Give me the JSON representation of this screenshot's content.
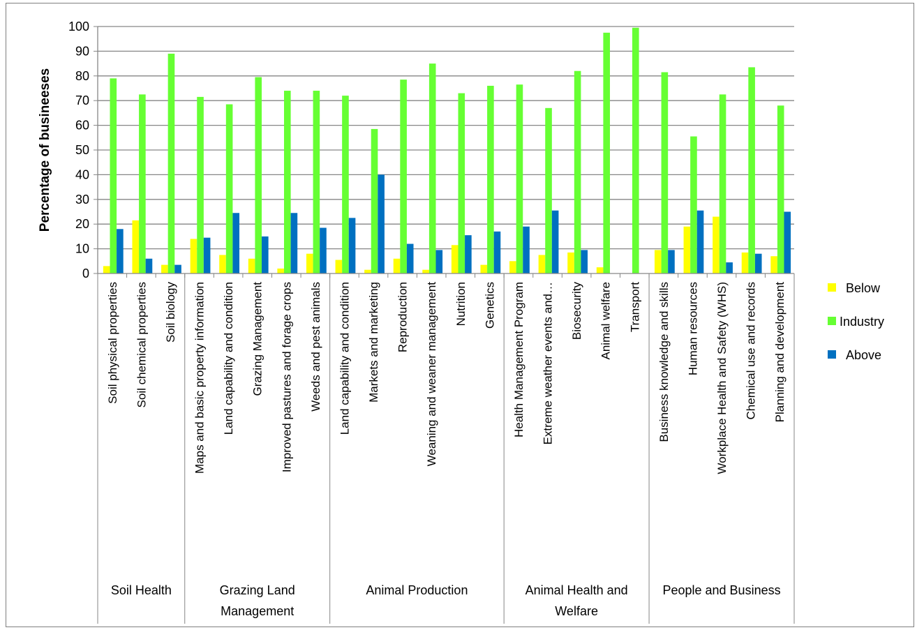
{
  "chart_data": {
    "type": "bar",
    "ylabel": "Percentage of busineeses",
    "ylim": [
      0,
      100
    ],
    "yticks": [
      0,
      10,
      20,
      30,
      40,
      50,
      60,
      70,
      80,
      90,
      100
    ],
    "grid": true,
    "legend_position": "right",
    "groups": [
      {
        "label": "Soil Health",
        "count": 3
      },
      {
        "label": "Grazing Land Management",
        "count": 5
      },
      {
        "label": "Animal Production",
        "count": 6
      },
      {
        "label": "Animal Health and Welfare",
        "count": 5
      },
      {
        "label": "People and Business",
        "count": 5
      }
    ],
    "categories": [
      "Soil physical properties",
      "Soil chemical properties",
      "Soil biology",
      "Maps and basic property information",
      "Land capability and condition",
      "Grazing Management",
      "Improved pastures and forage crops",
      "Weeds and pest animals",
      "Land capability and condition",
      "Markets and marketing",
      "Reproduction",
      "Weaning and weaner management",
      "Nutrition",
      "Genetics",
      "Health Management Program",
      "Extreme weather events and…",
      "Biosecurity",
      "Animal welfare",
      "Transport",
      "Business knowledge and skills",
      "Human resources",
      "Workplace Health and Safety (WHS)",
      "Chemical use and records",
      "Planning and development"
    ],
    "series": [
      {
        "name": "Below",
        "color": "#ffff00",
        "values": [
          3,
          21.5,
          3.5,
          14,
          7.5,
          6,
          2,
          8,
          5.5,
          1.5,
          6,
          1.5,
          11.5,
          3.5,
          5,
          7.5,
          8.5,
          2.5,
          0,
          9.5,
          19,
          23,
          8.5,
          7
        ]
      },
      {
        "name": "Industry",
        "color": "#66ff33",
        "values": [
          79,
          72.5,
          89,
          71.5,
          68.5,
          79.5,
          74,
          74,
          72,
          58.5,
          78.5,
          85,
          73,
          76,
          76.5,
          67,
          82,
          97.5,
          99.5,
          81.5,
          55.5,
          72.5,
          83.5,
          68
        ]
      },
      {
        "name": "Above",
        "color": "#0070c0",
        "values": [
          18,
          6,
          3.5,
          14.5,
          24.5,
          15,
          24.5,
          18.5,
          22.5,
          40,
          12,
          9.5,
          15.5,
          17,
          19,
          25.5,
          9.5,
          0,
          0,
          9.5,
          25.5,
          4.5,
          8,
          25
        ]
      }
    ]
  }
}
